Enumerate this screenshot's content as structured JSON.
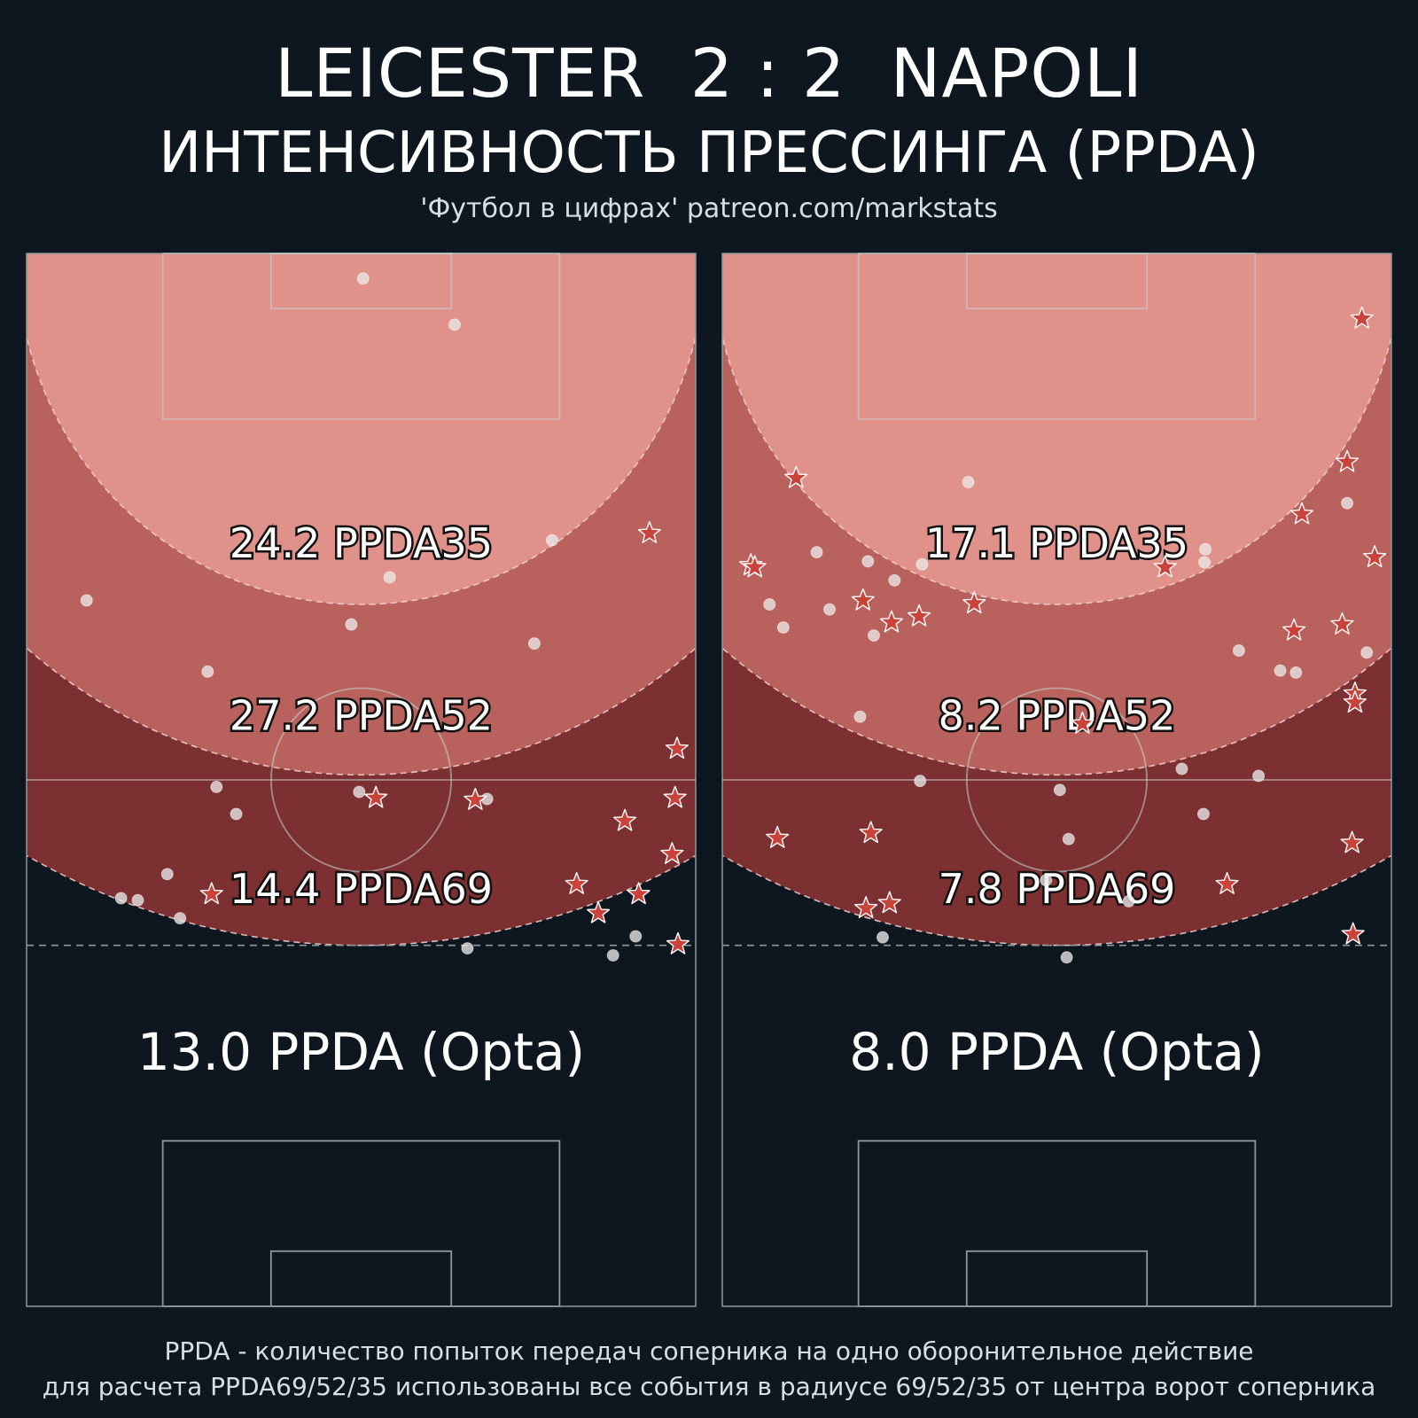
{
  "header": {
    "match": "LEICESTER  2 : 2  NAPOLI",
    "title": "ИНТЕНСИВНОСТЬ ПРЕССИНГА (PPDA)",
    "credit": "'Футбол в цифрах' patreon.com/markstats"
  },
  "footer": {
    "line1": "PPDA - количество попыток передач соперника на одно оборонительное действие",
    "line2": "для расчета PPDA69/52/35 использованы все события в радиусе 69/52/35 от центра ворот соперника"
  },
  "colors": {
    "background": "#0e1720",
    "zone35": "#e0918a",
    "zone52": "#b9625d",
    "zone69": "#7d3032",
    "star": "#c9433b",
    "dot": "#e8e8e8"
  },
  "chart_data": [
    {
      "type": "scatter",
      "team": "LEICESTER",
      "pitch_x_range": [
        0,
        68
      ],
      "pitch_y_range": [
        0,
        105
      ],
      "radii": [
        69,
        52,
        35
      ],
      "zone_labels": {
        "ppda35": "24.2 PPDA35",
        "ppda52": "27.2 PPDA52",
        "ppda69": "14.4 PPDA69",
        "opta": "13.0 PPDA (Opta)"
      },
      "circles": [
        [
          34.2,
          2.5
        ],
        [
          43.5,
          7.1
        ],
        [
          53.4,
          28.6
        ],
        [
          36.9,
          32.3
        ],
        [
          6.1,
          34.6
        ],
        [
          33.0,
          37.0
        ],
        [
          51.6,
          38.9
        ],
        [
          18.4,
          41.7
        ],
        [
          19.3,
          53.2
        ],
        [
          33.8,
          53.7
        ],
        [
          46.8,
          54.4
        ],
        [
          21.3,
          55.9
        ],
        [
          14.3,
          61.9
        ],
        [
          9.6,
          64.3
        ],
        [
          11.3,
          64.5
        ],
        [
          15.6,
          66.3
        ],
        [
          44.8,
          69.3
        ],
        [
          59.6,
          70.0
        ],
        [
          61.9,
          68.1
        ]
      ],
      "stars": [
        [
          63.3,
          27.9
        ],
        [
          66.1,
          49.4
        ],
        [
          35.5,
          54.3
        ],
        [
          45.6,
          54.5
        ],
        [
          65.9,
          54.3
        ],
        [
          60.8,
          56.6
        ],
        [
          65.6,
          59.9
        ],
        [
          18.8,
          63.9
        ],
        [
          55.9,
          62.9
        ],
        [
          62.2,
          63.9
        ],
        [
          58.1,
          65.8
        ],
        [
          66.2,
          68.9
        ]
      ]
    },
    {
      "type": "scatter",
      "team": "NAPOLI",
      "pitch_x_range": [
        0,
        68
      ],
      "pitch_y_range": [
        0,
        105
      ],
      "radii": [
        69,
        52,
        35
      ],
      "zone_labels": {
        "ppda35": "17.1 PPDA35",
        "ppda52": "8.2 PPDA52",
        "ppda69": "7.8 PPDA69",
        "opta": "8.0 PPDA (Opta)"
      },
      "circles": [
        [
          25.0,
          22.8
        ],
        [
          63.5,
          24.9
        ],
        [
          9.6,
          29.8
        ],
        [
          14.8,
          30.7
        ],
        [
          20.3,
          31.0
        ],
        [
          49.1,
          29.5
        ],
        [
          49.0,
          30.8
        ],
        [
          17.5,
          32.6
        ],
        [
          4.8,
          35.0
        ],
        [
          10.9,
          35.5
        ],
        [
          6.2,
          37.3
        ],
        [
          15.4,
          38.1
        ],
        [
          65.5,
          39.8
        ],
        [
          52.5,
          39.6
        ],
        [
          56.7,
          41.6
        ],
        [
          58.3,
          41.8
        ],
        [
          14.0,
          46.2
        ],
        [
          46.7,
          51.4
        ],
        [
          20.1,
          52.6
        ],
        [
          34.3,
          53.5
        ],
        [
          48.9,
          55.9
        ],
        [
          35.2,
          58.4
        ],
        [
          32.9,
          62.5
        ],
        [
          41.3,
          64.6
        ],
        [
          16.3,
          68.2
        ],
        [
          35.0,
          70.2
        ],
        [
          54.5,
          52.1
        ]
      ],
      "stars": [
        [
          65.0,
          6.5
        ],
        [
          7.5,
          22.4
        ],
        [
          63.5,
          20.8
        ],
        [
          58.9,
          26.0
        ],
        [
          66.3,
          30.3
        ],
        [
          2.9,
          31.1
        ],
        [
          3.3,
          31.3
        ],
        [
          45.0,
          31.3
        ],
        [
          14.3,
          34.6
        ],
        [
          17.2,
          36.8
        ],
        [
          20.0,
          36.2
        ],
        [
          25.6,
          34.9
        ],
        [
          58.1,
          37.6
        ],
        [
          63.0,
          37.0
        ],
        [
          64.3,
          43.9
        ],
        [
          64.3,
          44.8
        ],
        [
          36.6,
          46.9
        ],
        [
          5.6,
          58.3
        ],
        [
          15.1,
          57.8
        ],
        [
          51.3,
          62.9
        ],
        [
          64.0,
          58.8
        ],
        [
          14.6,
          65.3
        ],
        [
          17.0,
          64.8
        ],
        [
          64.1,
          67.9
        ]
      ]
    }
  ]
}
